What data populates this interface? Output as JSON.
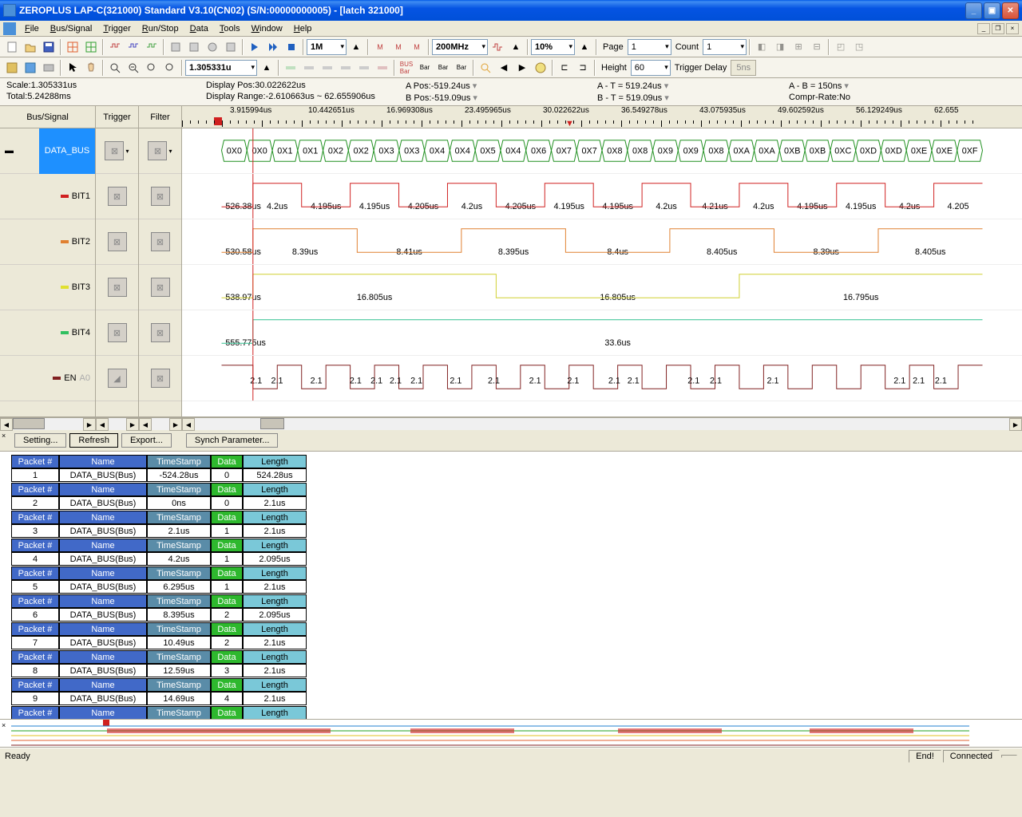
{
  "title": "ZEROPLUS LAP-C(321000) Standard V3.10(CN02) (S/N:00000000005) - [latch 321000]",
  "menu": [
    "File",
    "Bus/Signal",
    "Trigger",
    "Run/Stop",
    "Data",
    "Tools",
    "Window",
    "Help"
  ],
  "tb2": {
    "scale": "1.305331u",
    "depth": "1M",
    "freq": "200MHz",
    "zoom": "10%",
    "page_lbl": "Page",
    "page": "1",
    "count_lbl": "Count",
    "count": "1"
  },
  "tb3": {
    "height_lbl": "Height",
    "height": "60",
    "trigdelay_lbl": "Trigger Delay",
    "trigdelay": "5ns"
  },
  "info": {
    "scale": "Scale:1.305331us",
    "total": "Total:5.24288ms",
    "disppos": "Display Pos:30.022622us",
    "disprange": "Display Range:-2.610663us ~ 62.655906us",
    "apos": "A Pos:-519.24us",
    "bpos": "B Pos:-519.09us",
    "at": "A - T = 519.24us",
    "bt": "B - T = 519.09us",
    "ab": "A - B = 150ns",
    "compr": "Compr-Rate:No"
  },
  "sig_hdrs": {
    "bus": "Bus/Signal",
    "trig": "Trigger",
    "filt": "Filter"
  },
  "signals": [
    {
      "name": "DATA_BUS",
      "color": "#1e90ff",
      "bus": true
    },
    {
      "name": "BIT1",
      "color": "#d02020"
    },
    {
      "name": "BIT2",
      "color": "#e08030"
    },
    {
      "name": "BIT3",
      "color": "#e0e030"
    },
    {
      "name": "BIT4",
      "color": "#30c060"
    },
    {
      "name": "EN",
      "sub": "A0",
      "color": "#802020"
    }
  ],
  "ruler_labels": [
    "3.915994us",
    "10.442651us",
    "16.969308us",
    "23.495965us",
    "30.022622us",
    "36.549278us",
    "43.075935us",
    "49.602592us",
    "56.129249us",
    "62.655"
  ],
  "bus_values": [
    "0X0",
    "0X0",
    "0X1",
    "0X1",
    "0X2",
    "0X2",
    "0X3",
    "0X3",
    "0X4",
    "0X4",
    "0X5",
    "0X4",
    "0X6",
    "0X7",
    "0X7",
    "0X8",
    "0X8",
    "0X9",
    "0X9",
    "0X8",
    "0XA",
    "0XA",
    "0XB",
    "0XB",
    "0XC",
    "0XD",
    "0XD",
    "0XE",
    "0XE",
    "0XF"
  ],
  "bit1": {
    "first": "526.38us",
    "vals": [
      "4.2us",
      "4.195us",
      "4.195us",
      "4.205us",
      "4.2us",
      "4.205us",
      "4.195us",
      "4.195us",
      "4.2us",
      "4.21us",
      "4.2us",
      "4.195us",
      "4.195us",
      "4.2us",
      "4.205"
    ]
  },
  "bit2": {
    "first": "530.58us",
    "vals": [
      "8.39us",
      "8.41us",
      "8.395us",
      "8.4us",
      "8.405us",
      "8.39us",
      "8.405us"
    ]
  },
  "bit3": {
    "first": "538.97us",
    "vals": [
      "16.805us",
      "16.805us",
      "16.795us"
    ]
  },
  "bit4": {
    "first": "555.775us",
    "vals": [
      "33.6us"
    ]
  },
  "en_vals": [
    "2.1",
    "2.1",
    "2.1",
    "2.1",
    "2.1",
    "2.1",
    "2.1",
    "2.1",
    "2.1",
    "2.1",
    "2.1",
    "2.1",
    "2.1",
    "2.1",
    "2.1",
    "2.1",
    "2.1",
    "2.1",
    "2.1",
    "2.1",
    "2.1"
  ],
  "btns": {
    "setting": "Setting...",
    "refresh": "Refresh",
    "export": "Export...",
    "synch": "Synch Parameter..."
  },
  "pkt_hdrs": {
    "pkt": "Packet #",
    "name": "Name",
    "ts": "TimeStamp",
    "data": "Data",
    "len": "Length"
  },
  "packets": [
    {
      "n": "1",
      "name": "DATA_BUS(Bus)",
      "ts": "-524.28us",
      "d": "0",
      "len": "524.28us"
    },
    {
      "n": "2",
      "name": "DATA_BUS(Bus)",
      "ts": "0ns",
      "d": "0",
      "len": "2.1us"
    },
    {
      "n": "3",
      "name": "DATA_BUS(Bus)",
      "ts": "2.1us",
      "d": "1",
      "len": "2.1us"
    },
    {
      "n": "4",
      "name": "DATA_BUS(Bus)",
      "ts": "4.2us",
      "d": "1",
      "len": "2.095us"
    },
    {
      "n": "5",
      "name": "DATA_BUS(Bus)",
      "ts": "6.295us",
      "d": "1",
      "len": "2.1us"
    },
    {
      "n": "6",
      "name": "DATA_BUS(Bus)",
      "ts": "8.395us",
      "d": "2",
      "len": "2.095us"
    },
    {
      "n": "7",
      "name": "DATA_BUS(Bus)",
      "ts": "10.49us",
      "d": "2",
      "len": "2.1us"
    },
    {
      "n": "8",
      "name": "DATA_BUS(Bus)",
      "ts": "12.59us",
      "d": "3",
      "len": "2.1us"
    },
    {
      "n": "9",
      "name": "DATA_BUS(Bus)",
      "ts": "14.69us",
      "d": "4",
      "len": "2.1us"
    }
  ],
  "status": {
    "ready": "Ready",
    "end": "End!",
    "conn": "Connected"
  }
}
